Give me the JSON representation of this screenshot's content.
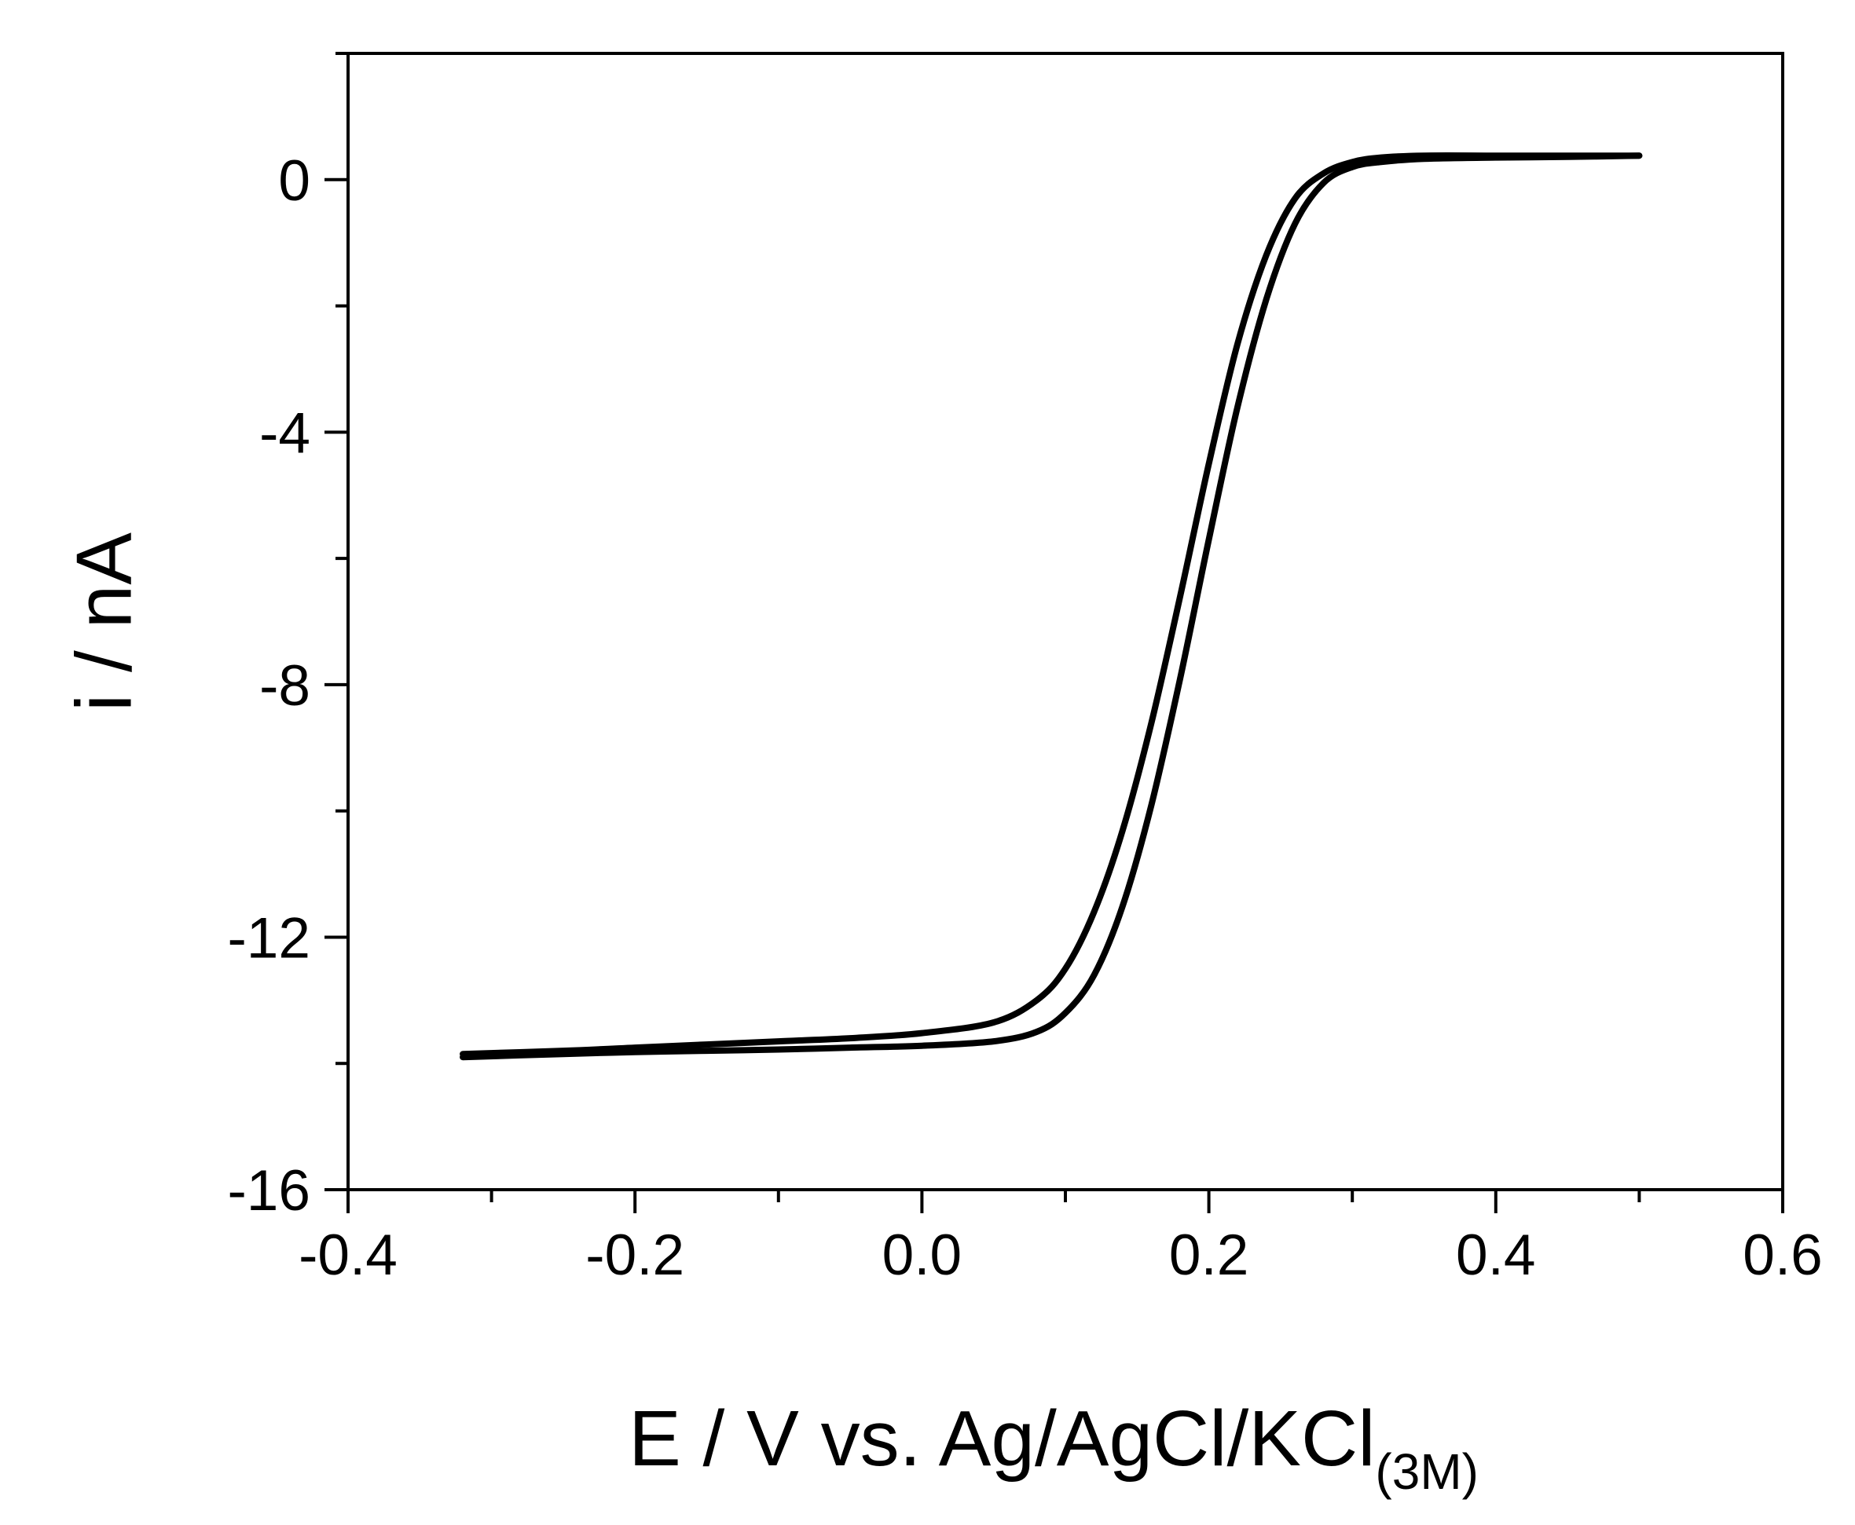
{
  "chart_data": {
    "type": "line",
    "xlabel": "E / V vs. Ag/AgCl/KCl",
    "xlabel_subscript": "(3M)",
    "ylabel": "i / nA",
    "xlim": [
      -0.4,
      0.6
    ],
    "ylim": [
      -16,
      2
    ],
    "x_ticks": [
      -0.4,
      -0.2,
      0.0,
      0.2,
      0.4,
      0.6
    ],
    "x_tick_labels": [
      "-0.4",
      "-0.2",
      "0.0",
      "0.2",
      "0.4",
      "0.6"
    ],
    "y_ticks": [
      0,
      -4,
      -8,
      -12,
      -16
    ],
    "y_tick_labels": [
      "0",
      "-4",
      "-8",
      "-12",
      "-16"
    ],
    "grid": false,
    "line_color": "#000000",
    "series": [
      {
        "x": [
          -0.32,
          -0.25,
          -0.2,
          -0.15,
          -0.1,
          -0.05,
          0.0,
          0.05,
          0.08,
          0.1,
          0.12,
          0.14,
          0.16,
          0.18,
          0.2,
          0.22,
          0.24,
          0.26,
          0.28,
          0.3,
          0.32,
          0.35,
          0.4,
          0.45,
          0.5
        ],
        "y": [
          -13.85,
          -13.8,
          -13.75,
          -13.7,
          -13.65,
          -13.6,
          -13.52,
          -13.35,
          -13.0,
          -12.5,
          -11.6,
          -10.3,
          -8.6,
          -6.6,
          -4.5,
          -2.6,
          -1.2,
          -0.3,
          0.1,
          0.28,
          0.35,
          0.38,
          0.38,
          0.38,
          0.38
        ]
      },
      {
        "x": [
          -0.32,
          -0.25,
          -0.2,
          -0.15,
          -0.1,
          -0.05,
          0.0,
          0.05,
          0.08,
          0.1,
          0.12,
          0.14,
          0.16,
          0.18,
          0.2,
          0.22,
          0.24,
          0.26,
          0.28,
          0.3,
          0.32,
          0.35,
          0.4,
          0.45,
          0.5
        ],
        "y": [
          -13.9,
          -13.85,
          -13.82,
          -13.8,
          -13.78,
          -13.75,
          -13.72,
          -13.65,
          -13.5,
          -13.2,
          -12.6,
          -11.5,
          -9.9,
          -7.9,
          -5.7,
          -3.6,
          -1.9,
          -0.7,
          -0.05,
          0.2,
          0.28,
          0.33,
          0.35,
          0.36,
          0.38
        ]
      }
    ]
  }
}
